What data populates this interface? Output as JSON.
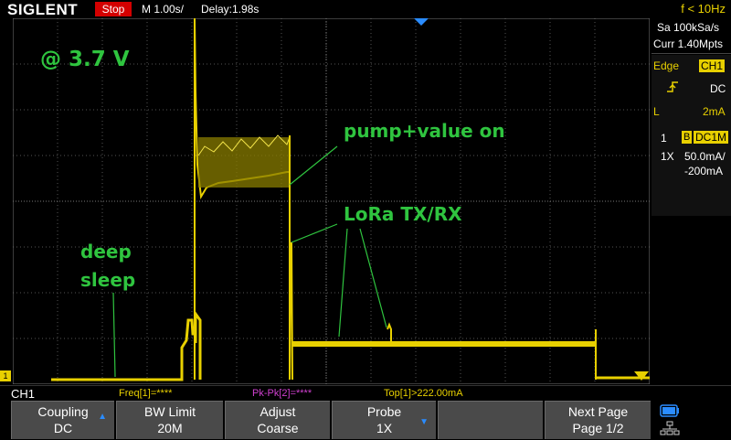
{
  "topbar": {
    "brand": "SIGLENT",
    "run_state": "Stop",
    "timebase": "M 1.00s/",
    "delay": "Delay:1.98s",
    "freq": "f < 10Hz"
  },
  "acquisition": {
    "sample_rate": "Sa 100kSa/s",
    "memory": "Curr 1.40Mpts"
  },
  "trigger": {
    "type": "Edge",
    "source": "CH1",
    "coupling": "DC",
    "slope_icon": "rising-edge-icon",
    "level_label": "L",
    "level": "2mA"
  },
  "channel": {
    "number": "1",
    "bw_flag": "B",
    "coupling_impedance": "DC1M",
    "probe": "1X",
    "scale": "50.0mA/",
    "offset": "-200mA",
    "color": "#e8d000"
  },
  "status": {
    "channel_label": "CH1",
    "meas1": "Freq[1]=****",
    "meas2": "Pk-Pk[2]=****",
    "meas3": "Top[1]>222.00mA",
    "ground_marker": "1"
  },
  "softkeys": [
    {
      "line1": "Coupling",
      "line2": "DC",
      "arrow": "up"
    },
    {
      "line1": "BW Limit",
      "line2": "20M",
      "arrow": ""
    },
    {
      "line1": "Adjust",
      "line2": "Coarse",
      "arrow": ""
    },
    {
      "line1": "Probe",
      "line2": "1X",
      "arrow": "down"
    },
    {
      "line1": "",
      "line2": "",
      "arrow": ""
    },
    {
      "line1": "Next Page",
      "line2": "Page 1/2",
      "arrow": ""
    }
  ],
  "annotations": {
    "voltage": "@ 3.7 V",
    "pump": "pump+value on",
    "lora": "LoRa TX/RX",
    "deep1": "deep",
    "deep2": "sleep"
  }
}
